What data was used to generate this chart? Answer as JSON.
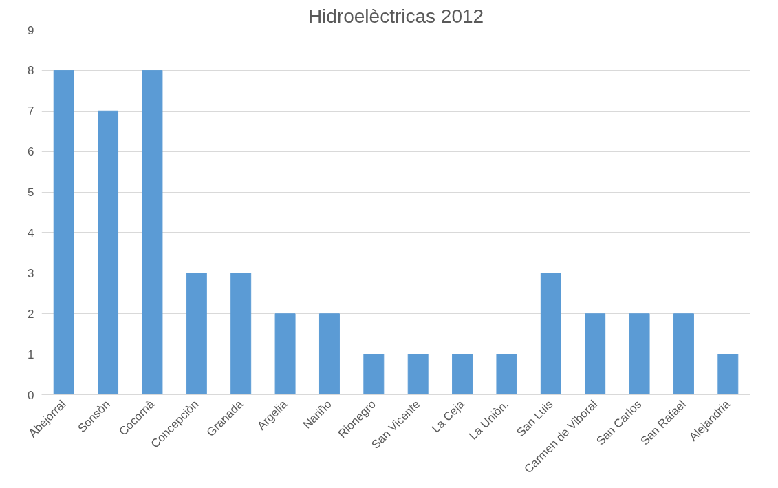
{
  "chart_data": {
    "type": "bar",
    "title": "Hidroelèctricas 2012",
    "categories": [
      "Abejorral",
      "Sonsòn",
      "Cocornà",
      "Concepciòn",
      "Granada",
      "Argelia",
      "Nariño",
      "Rionegro",
      "San Vicente",
      "La Ceja",
      "La Uniòn.",
      "San Luis",
      "Carmen de Viboral",
      "San Carlos",
      "San Rafael",
      "Alejandria"
    ],
    "values": [
      8,
      7,
      8,
      3,
      3,
      2,
      2,
      1,
      1,
      1,
      1,
      3,
      2,
      2,
      2,
      1
    ],
    "color": "#5b9bd5",
    "ylim": [
      0,
      9
    ],
    "yticks": [
      0,
      1,
      2,
      3,
      4,
      5,
      6,
      7,
      8,
      9
    ],
    "grid": "y"
  }
}
